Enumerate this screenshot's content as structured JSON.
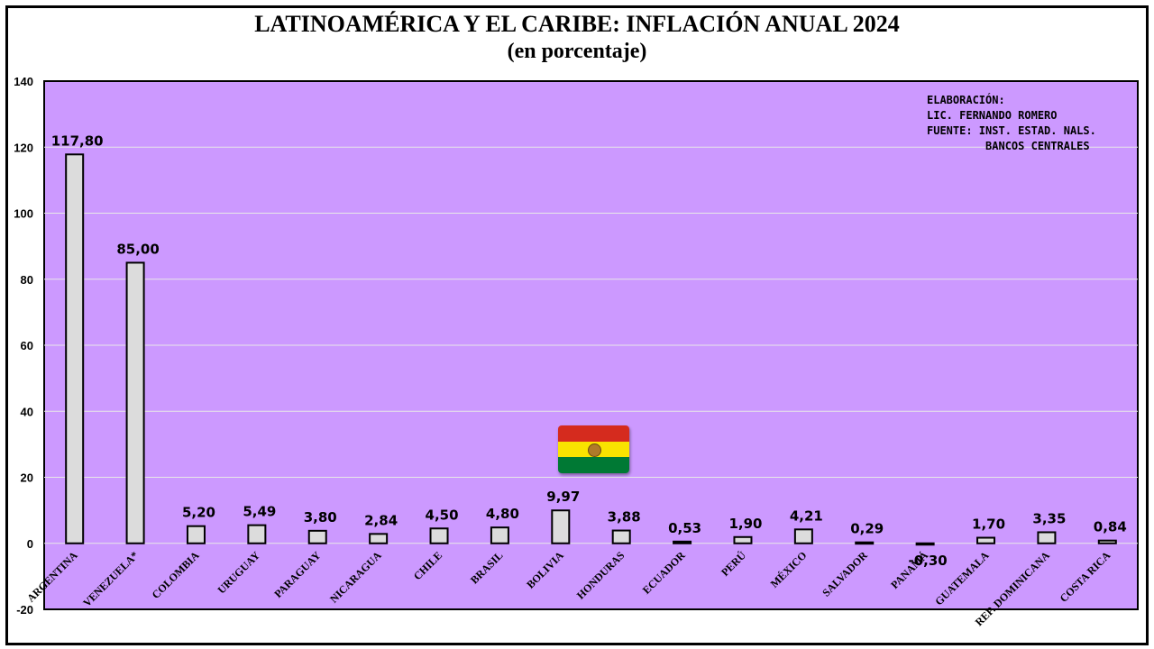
{
  "title": "LATINOAMÉRICA Y EL CARIBE: INFLACIÓN ANUAL 2024",
  "subtitle": "(en porcentaje)",
  "credit": {
    "line1": "ELABORACIÓN:",
    "line2": "LIC. FERNANDO ROMERO",
    "line3": "FUENTE: INST. ESTAD. NALS.",
    "line4": "         BANCOS CENTRALES"
  },
  "colors": {
    "plot_bg": "#cc99ff",
    "bar_fill": "#dcdcdc",
    "bar_stroke": "#000000",
    "grid": "#e8e8e8"
  },
  "flag": {
    "icon": "bolivia-flag-icon",
    "colors": [
      "#d52b1e",
      "#f9e300",
      "#007934"
    ]
  },
  "chart_data": {
    "type": "bar",
    "title": "LATINOAMÉRICA Y EL CARIBE: INFLACIÓN ANUAL 2024",
    "subtitle": "(en porcentaje)",
    "xlabel": "",
    "ylabel": "",
    "ylim": [
      -20,
      140
    ],
    "yticks": [
      -20,
      0,
      20,
      40,
      60,
      80,
      100,
      120,
      140
    ],
    "grid": true,
    "categories": [
      "ARGENTINA",
      "VENEZUELA*",
      "COLOMBIA",
      "URUGUAY",
      "PARAGUAY",
      "NICARAGUA",
      "CHILE",
      "BRASIL",
      "BOLIVIA",
      "HONDURAS",
      "ECUADOR",
      "PERÚ",
      "MÉXICO",
      "SALVADOR",
      "PANAMÁ",
      "GUATEMALA",
      "REP. DOMINICANA",
      "COSTA RICA"
    ],
    "values": [
      117.8,
      85.0,
      5.2,
      5.49,
      3.8,
      2.84,
      4.5,
      4.8,
      9.97,
      3.88,
      0.53,
      1.9,
      4.21,
      0.29,
      -0.3,
      1.7,
      3.35,
      0.84
    ],
    "data_labels": [
      "117,80",
      "85,00",
      "5,20",
      "5,49",
      "3,80",
      "2,84",
      "4,50",
      "4,80",
      "9,97",
      "3,88",
      "0,53",
      "1,90",
      "4,21",
      "0,29",
      "-0,30",
      "1,70",
      "3,35",
      "0,84"
    ]
  }
}
